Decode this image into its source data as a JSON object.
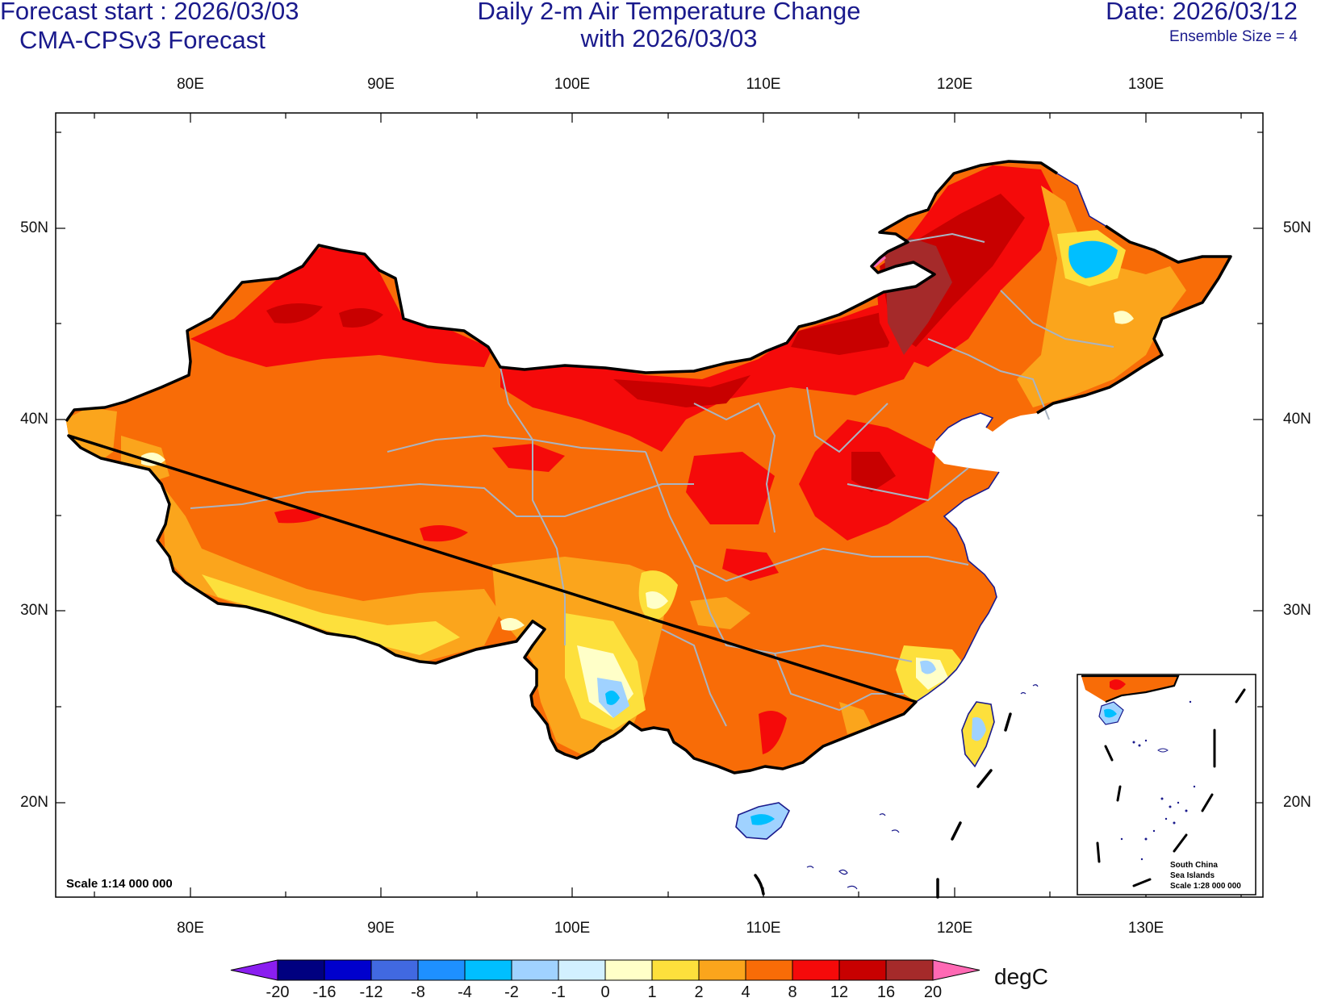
{
  "header": {
    "left_line1": "Forecast start : 2026/03/03",
    "left_line2": "CMA-CPSv3 Forecast",
    "center_line1": "Daily 2-m Air Temperature Change",
    "center_line2": "with 2026/03/03",
    "right_line1": "Date: 2026/03/12",
    "right_line2": "Ensemble Size = 4"
  },
  "axes": {
    "lon_labels": [
      "80E",
      "90E",
      "100E",
      "110E",
      "120E",
      "130E"
    ],
    "lat_labels": [
      "50N",
      "40N",
      "30N",
      "20N"
    ]
  },
  "map": {
    "scale_label": "Scale 1:14 000 000",
    "inset": {
      "line1": "South China",
      "line2": "Sea Islands",
      "line3": "Scale 1:28 000 000"
    }
  },
  "colorbar": {
    "unit": "degC",
    "labels": [
      "-20",
      "-16",
      "-12",
      "-8",
      "-4",
      "-2",
      "-1",
      "0",
      "1",
      "2",
      "4",
      "8",
      "12",
      "16",
      "20"
    ],
    "colors": {
      "below": "#8a1ef0",
      "bins": [
        "#000080",
        "#0000cd",
        "#4169e1",
        "#1e90ff",
        "#00bfff",
        "#a0d2ff",
        "#d2f0ff",
        "#ffffc8",
        "#fde03c",
        "#fba51c",
        "#f86c07",
        "#f50a0a",
        "#c80000",
        "#a52a2a"
      ],
      "above": "#ff69b4"
    }
  },
  "colors": {
    "title_text": "#1a1a8c",
    "coastline": "#1a1a8c",
    "province_border": "#a9b4c2",
    "national_border": "#000000"
  }
}
